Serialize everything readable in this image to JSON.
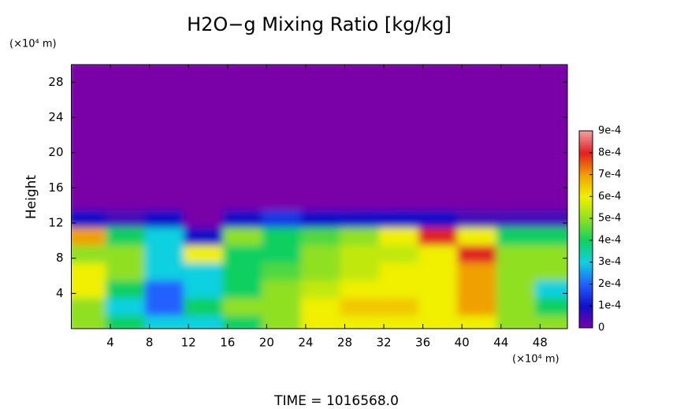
{
  "chart_data": {
    "type": "heatmap",
    "title": "H2O−g Mixing Ratio [kg/kg]",
    "y_label": "Height",
    "y_unit": "(×10⁴ m)",
    "x_unit": "(×10⁴ m)",
    "footer": "TIME  =  1016568.0",
    "xlim": [
      0,
      50.8
    ],
    "ylim": [
      0,
      30
    ],
    "xticks": [
      4,
      8,
      12,
      16,
      20,
      24,
      28,
      32,
      36,
      40,
      44,
      48
    ],
    "yticks": [
      4,
      8,
      12,
      16,
      20,
      24,
      28
    ],
    "xbins": [
      0,
      4,
      8,
      12,
      16,
      20,
      24,
      28,
      32,
      36,
      40,
      44,
      48,
      52
    ],
    "ybins": [
      0,
      2,
      4,
      6,
      8,
      10,
      12,
      14,
      16,
      18,
      20,
      22,
      24,
      26,
      28,
      30
    ],
    "values": [
      [
        0.0005,
        0.0004,
        0.0003,
        0.0003,
        0.0004,
        0.0005,
        0.0006,
        0.0006,
        0.0006,
        0.0006,
        0.0006,
        0.0005,
        0.0005
      ],
      [
        0.0005,
        0.0003,
        0.0002,
        0.0004,
        0.0005,
        0.0005,
        0.0006,
        0.00065,
        0.00065,
        0.0006,
        0.0007,
        0.0005,
        0.0004
      ],
      [
        0.0006,
        0.0004,
        0.0002,
        0.0003,
        0.0004,
        0.0005,
        0.00055,
        0.0006,
        0.0006,
        0.0006,
        0.0007,
        0.0005,
        0.0003
      ],
      [
        0.0006,
        0.0005,
        0.0003,
        0.0003,
        0.0004,
        0.00045,
        0.0005,
        0.00055,
        0.0006,
        0.0006,
        0.0007,
        0.0005,
        0.0005
      ],
      [
        0.0005,
        0.0005,
        0.0003,
        0.0006,
        0.0004,
        0.0004,
        0.0005,
        0.00055,
        0.00055,
        0.0006,
        0.0008,
        0.0005,
        0.0005
      ],
      [
        0.0007,
        0.0004,
        0.0003,
        0.0001,
        0.0005,
        0.0004,
        0.00045,
        0.0005,
        0.0006,
        0.0008,
        0.0006,
        0.0004,
        0.0004
      ],
      [
        0.0001,
        5e-05,
        0.0001,
        0,
        0.0001,
        0.00015,
        0.0001,
        0.0001,
        0.0001,
        0.0001,
        5e-05,
        5e-05,
        5e-05
      ],
      [
        0,
        0,
        0,
        0,
        0,
        0,
        0,
        0,
        0,
        0,
        0,
        0,
        0
      ],
      [
        0,
        0,
        0,
        0,
        0,
        0,
        0,
        0,
        0,
        0,
        0,
        0,
        0
      ],
      [
        0,
        0,
        0,
        0,
        0,
        0,
        0,
        0,
        0,
        0,
        0,
        0,
        0
      ],
      [
        0,
        0,
        0,
        0,
        0,
        0,
        0,
        0,
        0,
        0,
        0,
        0,
        0
      ],
      [
        0,
        0,
        0,
        0,
        0,
        0,
        0,
        0,
        0,
        0,
        0,
        0,
        0
      ],
      [
        0,
        0,
        0,
        0,
        0,
        0,
        0,
        0,
        0,
        0,
        0,
        0,
        0
      ],
      [
        0,
        0,
        0,
        0,
        0,
        0,
        0,
        0,
        0,
        0,
        0,
        0,
        0
      ],
      [
        0,
        0,
        0,
        0,
        0,
        0,
        0,
        0,
        0,
        0,
        0,
        0,
        0
      ]
    ],
    "clim": [
      0,
      0.0009
    ],
    "cticks": [
      0,
      {
        "value": 0.0001,
        "label": "1e-4"
      },
      {
        "value": 0.0002,
        "label": "2e-4"
      },
      {
        "value": 0.0003,
        "label": "3e-4"
      },
      {
        "value": 0.0004,
        "label": "4e-4"
      },
      {
        "value": 0.0005,
        "label": "5e-4"
      },
      {
        "value": 0.0006,
        "label": "6e-4"
      },
      {
        "value": 0.0007,
        "label": "7e-4"
      },
      {
        "value": 0.0008,
        "label": "8e-4"
      },
      {
        "value": 0.0009,
        "label": "9e-4"
      }
    ],
    "colors": [
      "#7a00a8",
      "#1010c8",
      "#2060ff",
      "#10d0e0",
      "#10d060",
      "#90e020",
      "#f0f000",
      "#f0a000",
      "#e02020",
      "#f0a0a0"
    ]
  }
}
